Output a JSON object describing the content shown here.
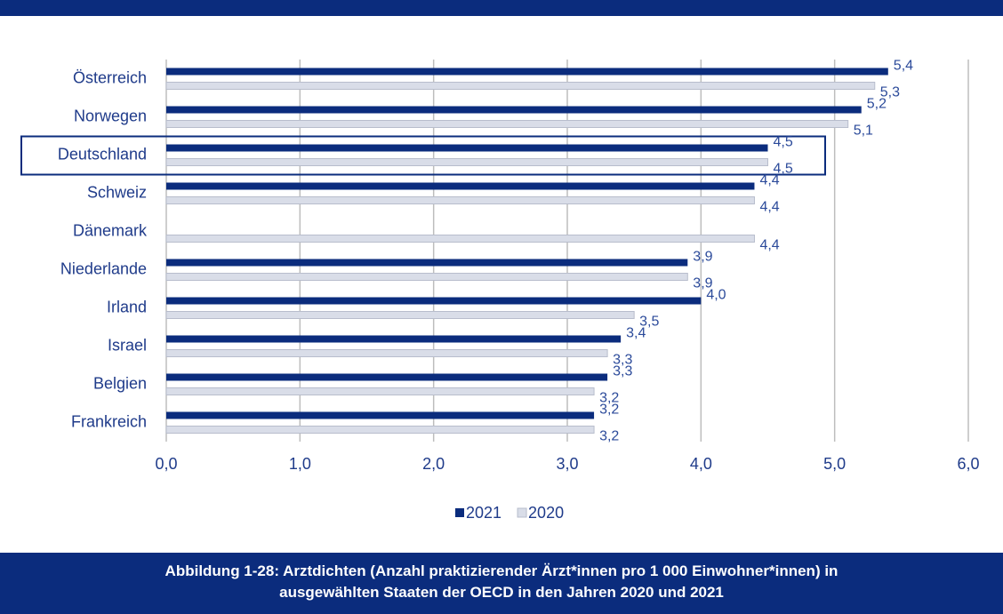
{
  "chart_data": {
    "type": "hbar",
    "categories": [
      "Österreich",
      "Norwegen",
      "Deutschland",
      "Schweiz",
      "Dänemark",
      "Niederlande",
      "Irland",
      "Israel",
      "Belgien",
      "Frankreich"
    ],
    "series": [
      {
        "name": "2021",
        "color": "#0b2c7d",
        "values": [
          5.4,
          5.2,
          4.5,
          4.4,
          null,
          3.9,
          4.0,
          3.4,
          3.3,
          3.2
        ],
        "value_labels": [
          "5,4",
          "5,2",
          "4,5",
          "4,4",
          null,
          "3,9",
          "4,0",
          "3,4",
          "3,3",
          "3,2"
        ]
      },
      {
        "name": "2020",
        "color": "#d9dde8",
        "values": [
          5.3,
          5.1,
          4.5,
          4.4,
          4.4,
          3.9,
          3.5,
          3.3,
          3.2,
          3.2
        ],
        "value_labels": [
          "5,3",
          "5,1",
          "4,5",
          "4,4",
          "4,4",
          "3,9",
          "3,5",
          "3,3",
          "3,2",
          "3,2"
        ]
      }
    ],
    "xlim": [
      0,
      6
    ],
    "xticks": [
      {
        "value": 0,
        "label": "0,0"
      },
      {
        "value": 1,
        "label": "1,0"
      },
      {
        "value": 2,
        "label": "2,0"
      },
      {
        "value": 3,
        "label": "3,0"
      },
      {
        "value": 4,
        "label": "4,0"
      },
      {
        "value": 5,
        "label": "5,0"
      },
      {
        "value": 6,
        "label": "6,0"
      }
    ],
    "grid": true,
    "legend": "bottom",
    "highlight": "Deutschland",
    "caption": "Abbildung 1-28: Arztdichten (Anzahl praktizierender Ärzt*innen pro 1 000 Einwohner*innen) in ausgewählten Staaten der OECD in den Jahren 2020 und 2021"
  }
}
